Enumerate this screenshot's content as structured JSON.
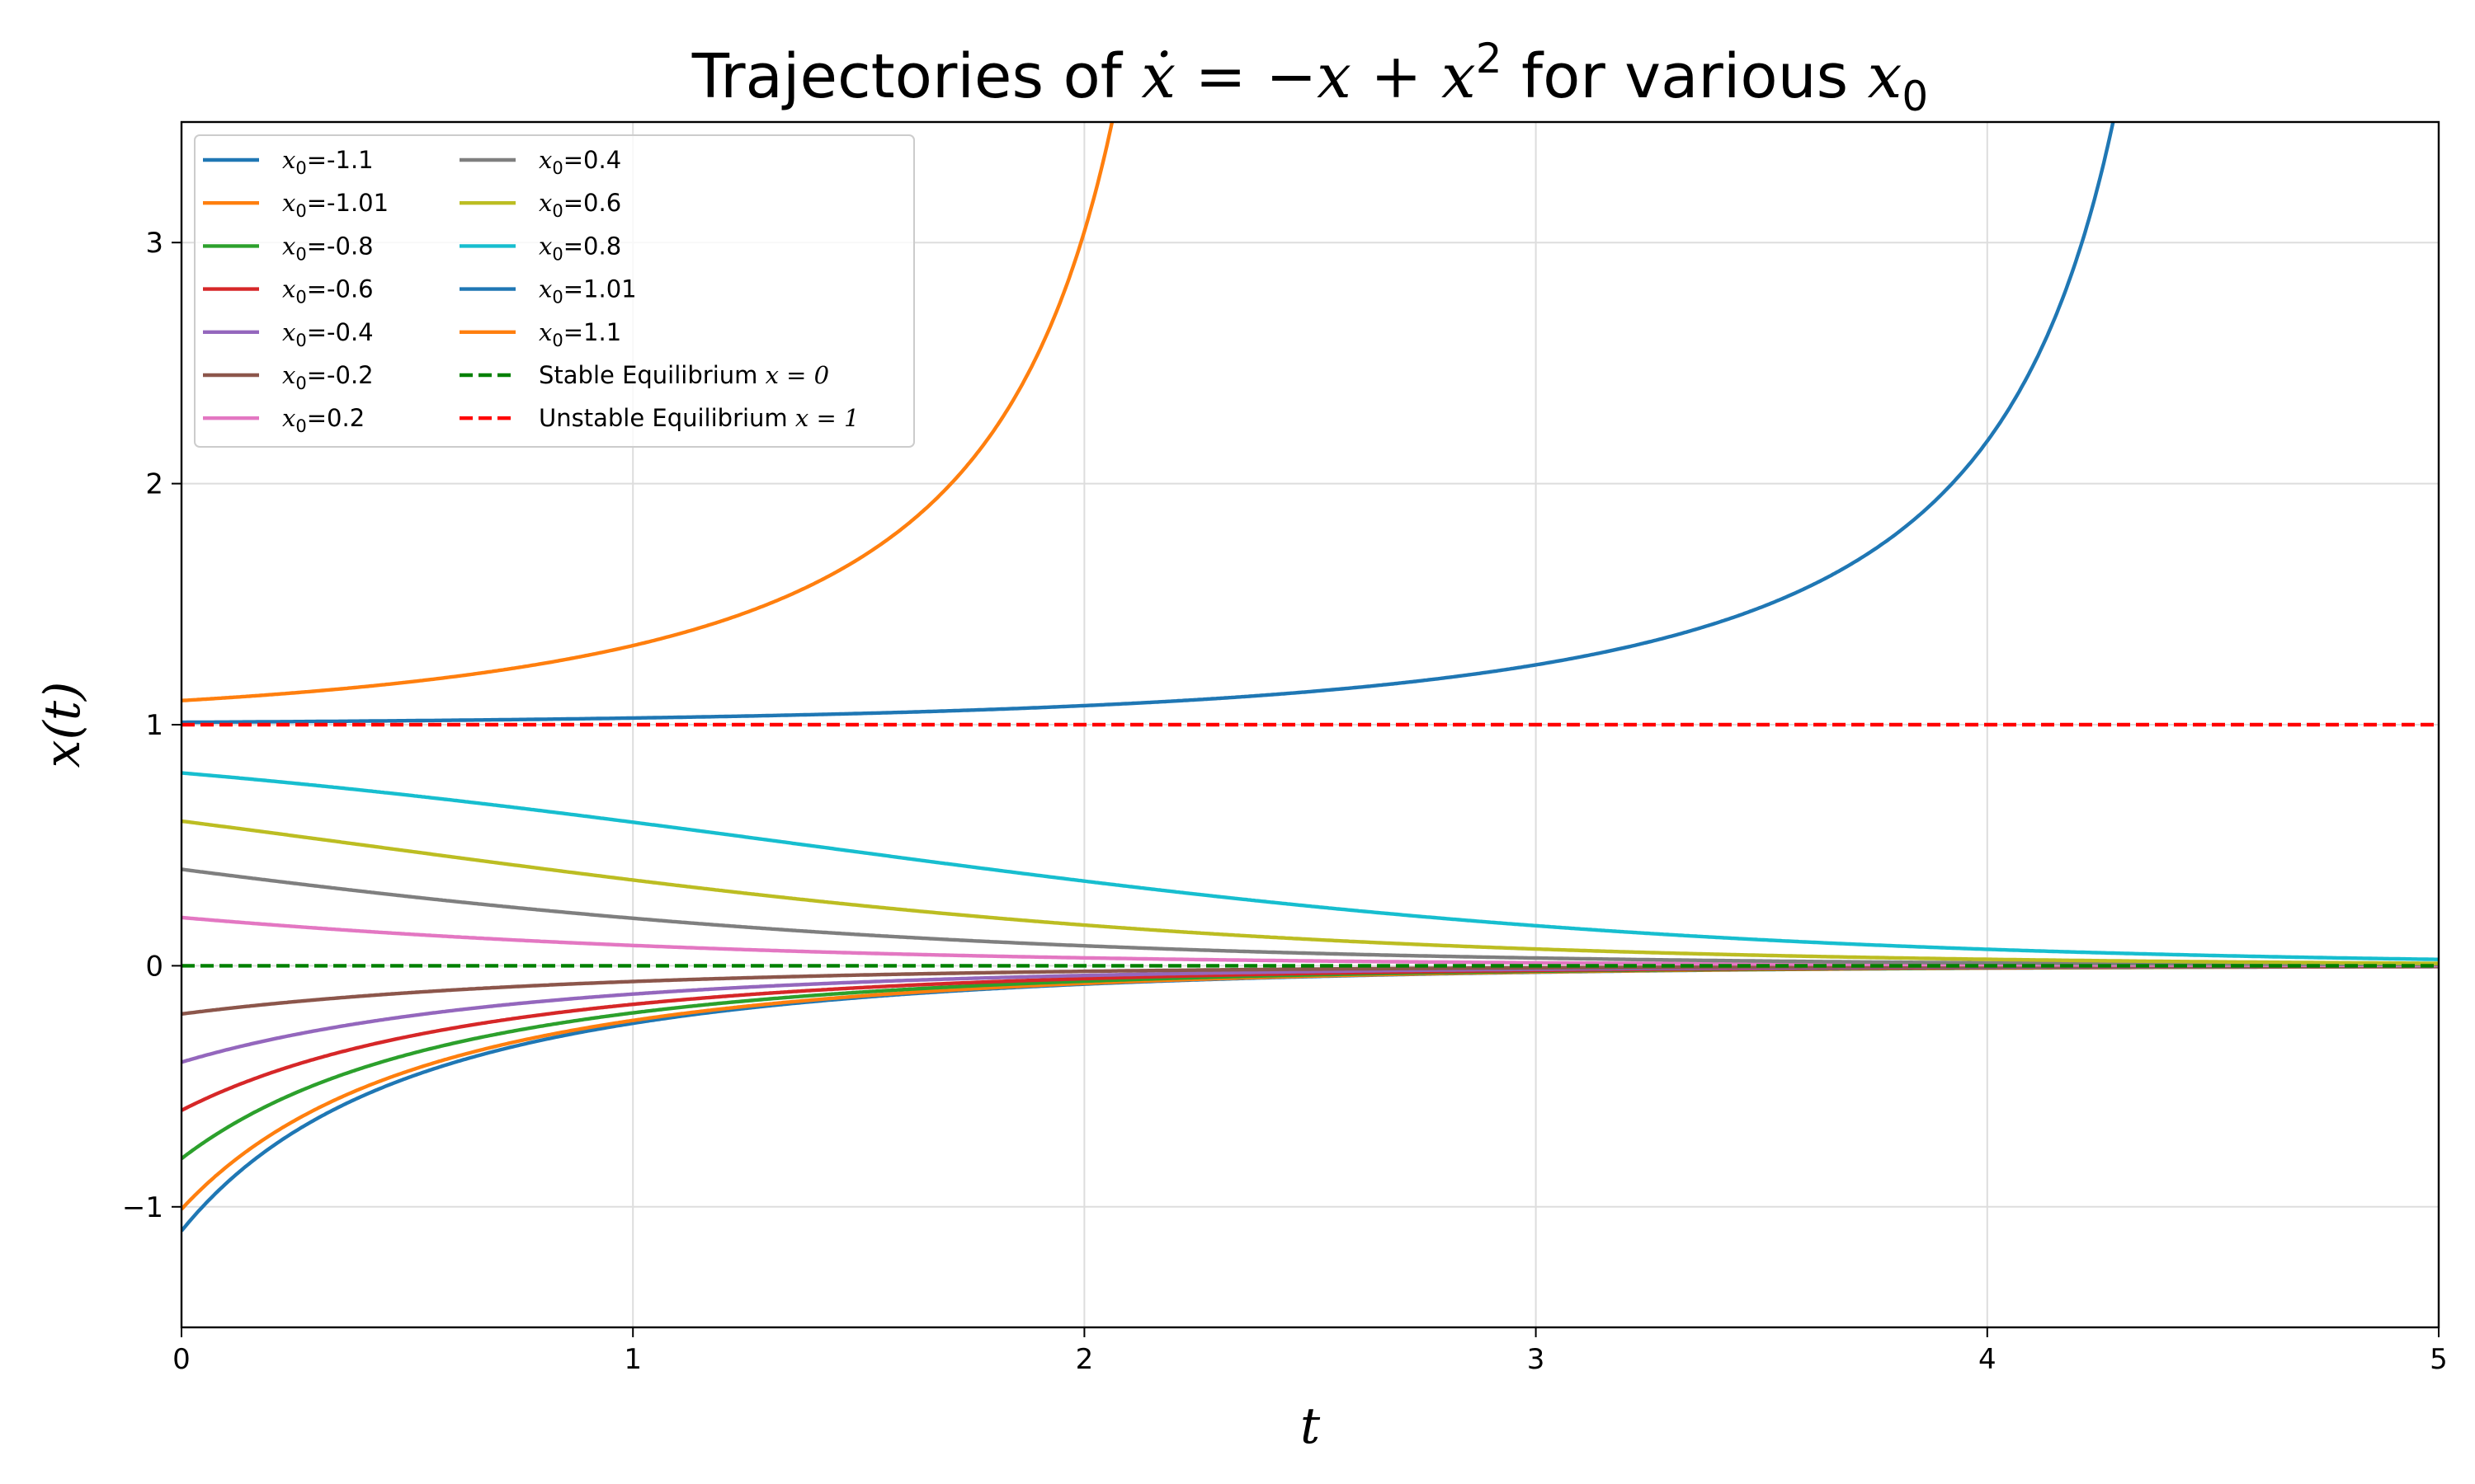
{
  "chart_data": {
    "type": "line",
    "title_parts": {
      "prefix": "Trajectories of ",
      "equation": "ẋ = −x + x",
      "equation_exp": "2",
      "suffix": " for various ",
      "var": "x",
      "var_sub": "0"
    },
    "xlabel": "t",
    "ylabel": "x(t)",
    "xlim": [
      0,
      5
    ],
    "ylim": [
      -1.5,
      3.5
    ],
    "x_ticks": [
      "0",
      "1",
      "2",
      "3",
      "4",
      "5"
    ],
    "y_ticks": [
      "−1",
      "0",
      "1",
      "2",
      "3"
    ],
    "grid": true,
    "legend_position": "upper-left",
    "legend_columns": 2,
    "ode": "dx/dt = -x + x^2",
    "series": [
      {
        "label": "=-1.1",
        "x0": -1.1,
        "color": "#1f77b4"
      },
      {
        "label": "=-1.01",
        "x0": -1.01,
        "color": "#ff7f0e"
      },
      {
        "label": "=-0.8",
        "x0": -0.8,
        "color": "#2ca02c"
      },
      {
        "label": "=-0.6",
        "x0": -0.6,
        "color": "#d62728"
      },
      {
        "label": "=-0.4",
        "x0": -0.4,
        "color": "#9467bd"
      },
      {
        "label": "=-0.2",
        "x0": -0.2,
        "color": "#8c564b"
      },
      {
        "label": "=0.2",
        "x0": 0.2,
        "color": "#e377c2"
      },
      {
        "label": "=0.4",
        "x0": 0.4,
        "color": "#7f7f7f"
      },
      {
        "label": "=0.6",
        "x0": 0.6,
        "color": "#bcbd22"
      },
      {
        "label": "=0.8",
        "x0": 0.8,
        "color": "#17becf"
      },
      {
        "label": "=1.01",
        "x0": 1.01,
        "color": "#1f77b4"
      },
      {
        "label": "=1.1",
        "x0": 1.1,
        "color": "#ff7f0e"
      }
    ],
    "equilibria": [
      {
        "label_text": "Stable Equilibrium ",
        "label_math": "x = 0",
        "y": 0,
        "color": "#008000",
        "style": "dashed"
      },
      {
        "label_text": "Unstable Equilibrium ",
        "label_math": "x = 1",
        "y": 1,
        "color": "#ff0000",
        "style": "dashed"
      }
    ]
  }
}
